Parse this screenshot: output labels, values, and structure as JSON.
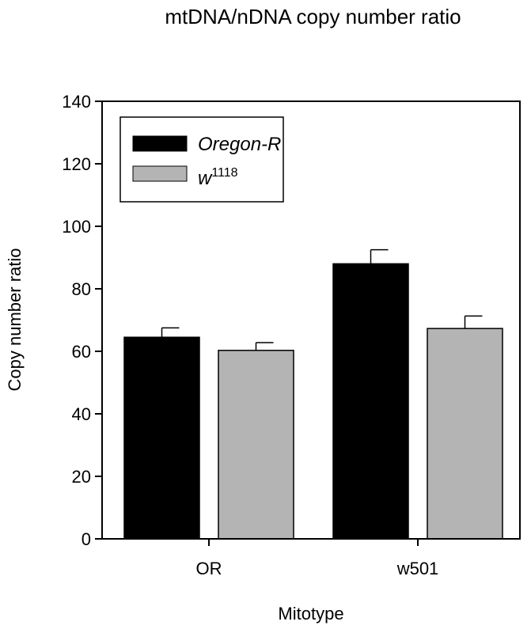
{
  "chart_data": {
    "type": "bar",
    "title": "mtDNA/nDNA copy number ratio",
    "xlabel": "Mitotype",
    "ylabel": "Copy number ratio",
    "categories": [
      "OR",
      "w501"
    ],
    "ylim": [
      0,
      140
    ],
    "yticks": [
      0,
      20,
      40,
      60,
      80,
      100,
      120,
      140
    ],
    "series": [
      {
        "name": "Oregon-R",
        "name_base": "Oregon-R",
        "name_sup": "",
        "color": "#000000",
        "values": [
          64.5,
          88
        ],
        "errors": [
          3,
          4.5
        ]
      },
      {
        "name": "w1118",
        "name_base": "w",
        "name_sup": "1118",
        "color": "#b4b4b4",
        "values": [
          60.3,
          67.3
        ],
        "errors": [
          2.5,
          4
        ]
      }
    ],
    "legend_position": "top-left",
    "grid": false
  }
}
